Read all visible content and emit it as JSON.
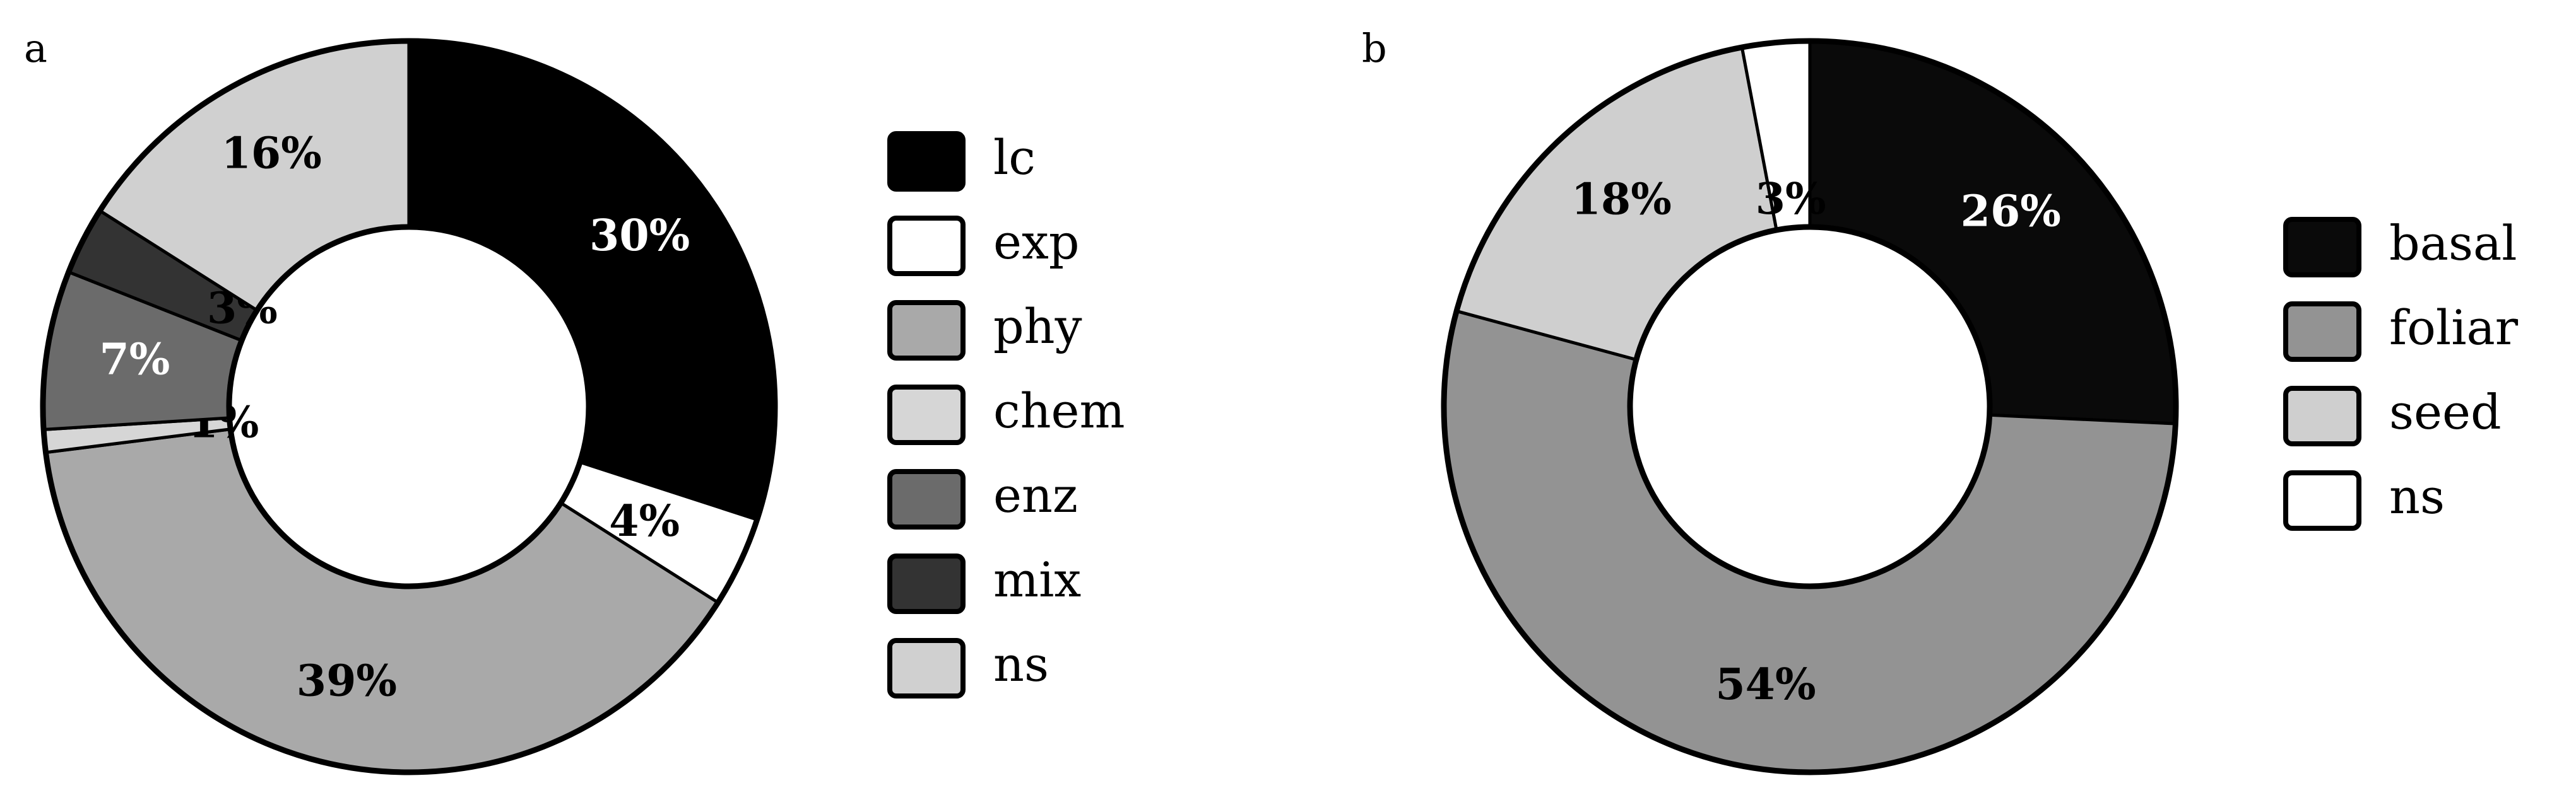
{
  "chart_data": [
    {
      "panel_label": "a",
      "type": "pie",
      "legend_position": "right",
      "slices": [
        {
          "name": "lc",
          "value": 30,
          "label": "30%",
          "color": "#000000",
          "label_color": "#ffffff"
        },
        {
          "name": "exp",
          "value": 4,
          "label": "4%",
          "color": "#ffffff",
          "label_color": "#000000"
        },
        {
          "name": "phy",
          "value": 39,
          "label": "39%",
          "color": "#a9a9a9",
          "label_color": "#000000"
        },
        {
          "name": "chem",
          "value": 1,
          "label": "1%",
          "color": "#d6d6d6",
          "label_color": "#000000"
        },
        {
          "name": "enz",
          "value": 7,
          "label": "7%",
          "color": "#6b6b6b",
          "label_color": "#ffffff"
        },
        {
          "name": "mix",
          "value": 3,
          "label": "3%",
          "color": "#333333",
          "label_color": "#000000"
        },
        {
          "name": "ns",
          "value": 16,
          "label": "16%",
          "color": "#d0d0d0",
          "label_color": "#000000"
        }
      ]
    },
    {
      "panel_label": "b",
      "type": "pie",
      "legend_position": "right",
      "slices": [
        {
          "name": "basal",
          "value": 26,
          "label": "26%",
          "color": "#0a0a0a",
          "label_color": "#ffffff"
        },
        {
          "name": "foliar",
          "value": 54,
          "label": "54%",
          "color": "#939393",
          "label_color": "#000000"
        },
        {
          "name": "seed",
          "value": 18,
          "label": "18%",
          "color": "#cfcfcf",
          "label_color": "#000000"
        },
        {
          "name": "ns",
          "value": 3,
          "label": "3%",
          "color": "#ffffff",
          "label_color": "#000000"
        }
      ]
    }
  ]
}
